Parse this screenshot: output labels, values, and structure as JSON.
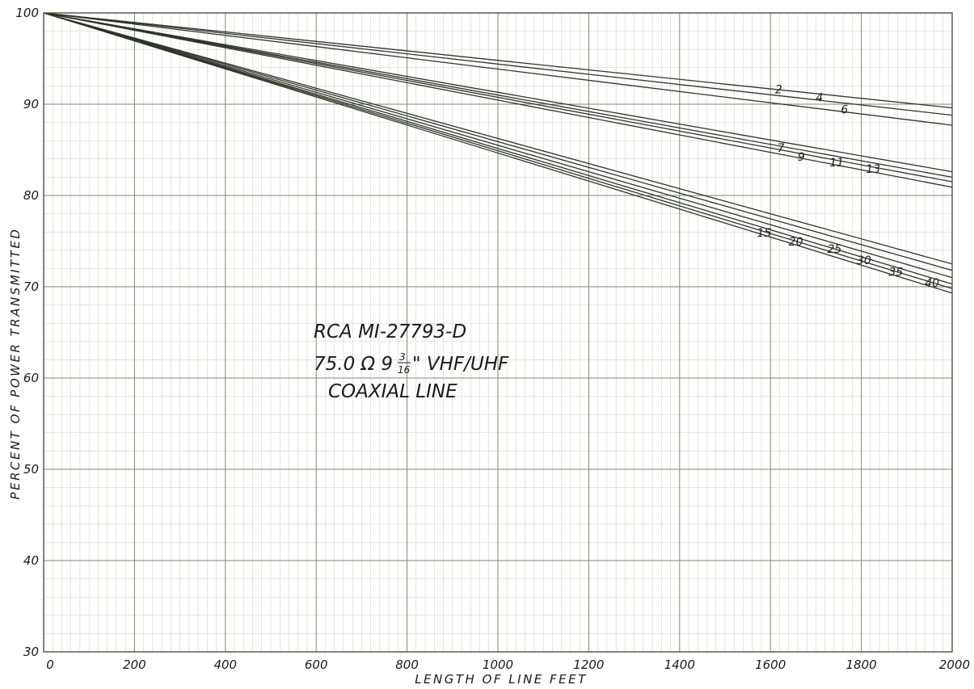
{
  "chart_data": {
    "type": "line",
    "title": "",
    "xlabel": "LENGTH OF LINE FEET",
    "ylabel": "PERCENT OF POWER TRANSMITTED",
    "xlim": [
      0,
      2000
    ],
    "ylim": [
      30,
      100
    ],
    "x_ticks": [
      0,
      200,
      400,
      600,
      800,
      1000,
      1200,
      1400,
      1600,
      1800,
      2000
    ],
    "y_ticks": [
      30,
      40,
      50,
      60,
      70,
      80,
      90,
      100
    ],
    "grid": true,
    "annotation": {
      "line1": "RCA MI-27793-D",
      "line2": "75.0 Ω 9",
      "line2_fraction_num": "3",
      "line2_fraction_den": "16",
      "line2_rest": "\" VHF/UHF",
      "line3": "COAXIAL LINE"
    },
    "series": [
      {
        "name": "2",
        "x": [
          0,
          2000
        ],
        "y": [
          100,
          89.6
        ]
      },
      {
        "name": "4",
        "x": [
          0,
          2000
        ],
        "y": [
          100,
          88.8
        ]
      },
      {
        "name": "6",
        "x": [
          0,
          2000
        ],
        "y": [
          100,
          87.7
        ]
      },
      {
        "name": "7",
        "x": [
          0,
          2000
        ],
        "y": [
          100,
          82.6
        ]
      },
      {
        "name": "9",
        "x": [
          0,
          2000
        ],
        "y": [
          100,
          82.0
        ]
      },
      {
        "name": "11",
        "x": [
          0,
          2000
        ],
        "y": [
          100,
          81.5
        ]
      },
      {
        "name": "13",
        "x": [
          0,
          2000
        ],
        "y": [
          100,
          80.9
        ]
      },
      {
        "name": "15",
        "x": [
          0,
          2000
        ],
        "y": [
          100,
          72.5
        ]
      },
      {
        "name": "20",
        "x": [
          0,
          2000
        ],
        "y": [
          100,
          71.8
        ]
      },
      {
        "name": "25",
        "x": [
          0,
          2000
        ],
        "y": [
          100,
          71.0
        ]
      },
      {
        "name": "30",
        "x": [
          0,
          2000
        ],
        "y": [
          100,
          70.3
        ]
      },
      {
        "name": "35",
        "x": [
          0,
          2000
        ],
        "y": [
          100,
          69.8
        ]
      },
      {
        "name": "40",
        "x": [
          0,
          2000
        ],
        "y": [
          100,
          69.3
        ]
      }
    ],
    "series_labels": [
      {
        "text": "2",
        "x": 1610,
        "y": 91.2
      },
      {
        "text": "4",
        "x": 1700,
        "y": 90.3
      },
      {
        "text": "6",
        "x": 1755,
        "y": 89.0
      },
      {
        "text": "7",
        "x": 1615,
        "y": 84.8
      },
      {
        "text": "9",
        "x": 1660,
        "y": 83.8
      },
      {
        "text": "11",
        "x": 1730,
        "y": 83.2
      },
      {
        "text": "13",
        "x": 1810,
        "y": 82.5
      },
      {
        "text": "15",
        "x": 1570,
        "y": 75.5
      },
      {
        "text": "20",
        "x": 1640,
        "y": 74.5
      },
      {
        "text": "25",
        "x": 1725,
        "y": 73.7
      },
      {
        "text": "30",
        "x": 1790,
        "y": 72.5
      },
      {
        "text": "35",
        "x": 1860,
        "y": 71.2
      },
      {
        "text": "40",
        "x": 1940,
        "y": 70.0
      }
    ]
  }
}
